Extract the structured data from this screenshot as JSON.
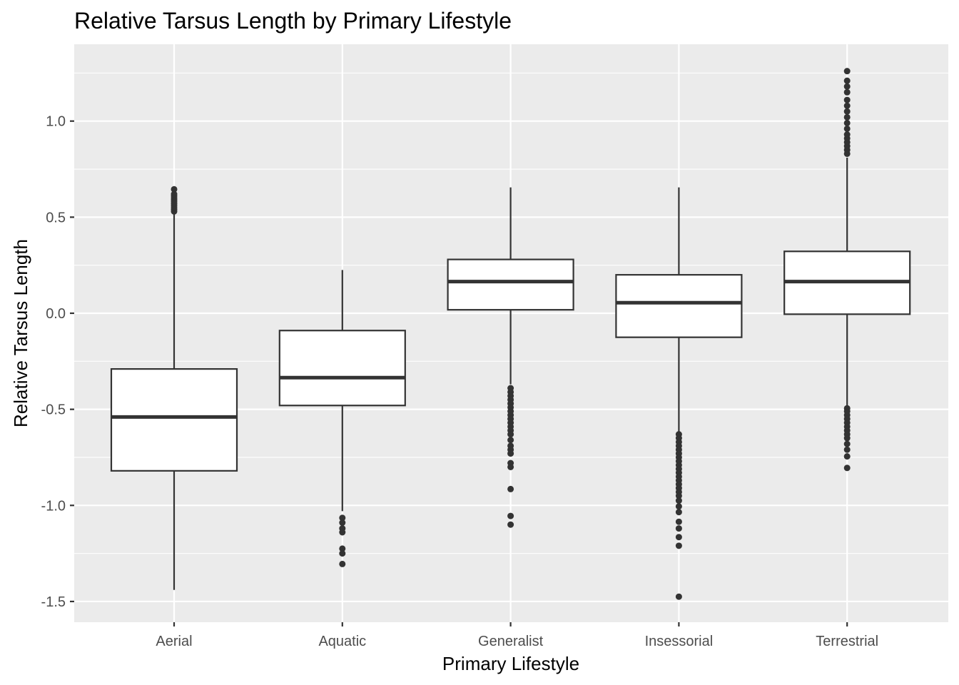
{
  "chart_data": {
    "type": "box",
    "title": "Relative Tarsus Length by Primary Lifestyle",
    "xlabel": "Primary Lifestyle",
    "ylabel": "Relative Tarsus Length",
    "ylim": [
      -1.6,
      1.4
    ],
    "y_ticks": [
      -1.5,
      -1.0,
      -0.5,
      0.0,
      0.5,
      1.0
    ],
    "y_tick_labels": [
      "-1.5",
      "-1.0",
      "-0.5",
      "0.0",
      "0.5",
      "1.0"
    ],
    "y_minor_ticks": [
      -1.25,
      -0.75,
      -0.25,
      0.25,
      0.75,
      1.25
    ],
    "grid": true,
    "categories": [
      "Aerial",
      "Aquatic",
      "Generalist",
      "Insessorial",
      "Terrestrial"
    ],
    "boxes": [
      {
        "category": "Aerial",
        "whisker_low": -1.44,
        "q1": -0.82,
        "median": -0.54,
        "q3": -0.29,
        "whisker_high": 0.52,
        "outliers": [
          0.53,
          0.54,
          0.55,
          0.56,
          0.57,
          0.58,
          0.59,
          0.6,
          0.61,
          0.62,
          0.645
        ]
      },
      {
        "category": "Aquatic",
        "whisker_low": -1.03,
        "q1": -0.48,
        "median": -0.335,
        "q3": -0.09,
        "whisker_high": 0.225,
        "outliers": [
          -1.065,
          -1.09,
          -1.12,
          -1.14,
          -1.225,
          -1.25,
          -1.305
        ]
      },
      {
        "category": "Generalist",
        "whisker_low": -0.37,
        "q1": 0.018,
        "median": 0.165,
        "q3": 0.28,
        "whisker_high": 0.655,
        "outliers": [
          -0.39,
          -0.41,
          -0.43,
          -0.45,
          -0.47,
          -0.49,
          -0.51,
          -0.53,
          -0.55,
          -0.57,
          -0.59,
          -0.61,
          -0.63,
          -0.66,
          -0.69,
          -0.71,
          -0.73,
          -0.78,
          -0.8,
          -0.915,
          -1.055,
          -1.1
        ]
      },
      {
        "category": "Insessorial",
        "whisker_low": -0.615,
        "q1": -0.125,
        "median": 0.055,
        "q3": 0.2,
        "whisker_high": 0.655,
        "outliers": [
          -0.63,
          -0.65,
          -0.67,
          -0.69,
          -0.71,
          -0.73,
          -0.75,
          -0.77,
          -0.79,
          -0.81,
          -0.83,
          -0.85,
          -0.87,
          -0.89,
          -0.91,
          -0.93,
          -0.95,
          -0.975,
          -1.005,
          -1.035,
          -1.085,
          -1.12,
          -1.165,
          -1.21,
          -1.475
        ]
      },
      {
        "category": "Terrestrial",
        "whisker_low": -0.48,
        "q1": -0.005,
        "median": 0.165,
        "q3": 0.322,
        "whisker_high": 0.81,
        "outliers": [
          0.83,
          0.85,
          0.87,
          0.89,
          0.91,
          0.93,
          0.96,
          0.99,
          1.02,
          1.05,
          1.08,
          1.11,
          1.15,
          1.18,
          1.21,
          1.26,
          -0.495,
          -0.51,
          -0.53,
          -0.55,
          -0.57,
          -0.59,
          -0.61,
          -0.63,
          -0.65,
          -0.68,
          -0.71,
          -0.745,
          -0.805
        ]
      }
    ]
  }
}
